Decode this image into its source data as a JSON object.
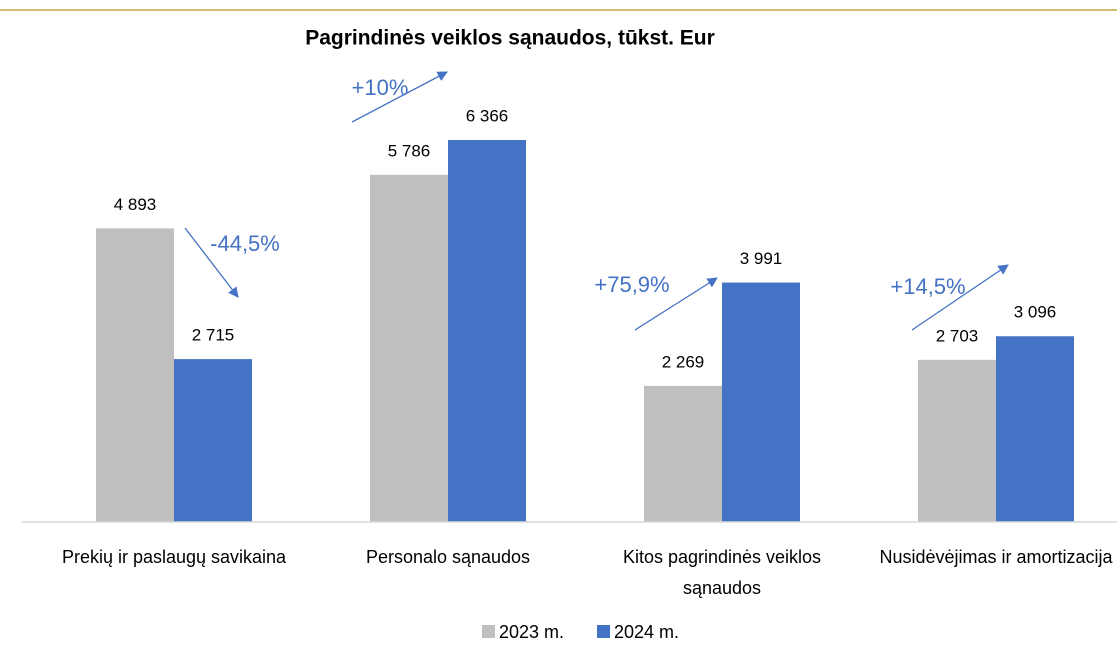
{
  "chart_data": {
    "type": "bar",
    "title": "Pagrindinės veiklos sąnaudos, tūkst. Eur",
    "categories": [
      "Prekių ir paslaugų savikaina",
      "Personalo sąnaudos",
      "Kitos pagrindinės veiklos sąnaudos",
      "Nusidėvėjimas ir amortizacija"
    ],
    "series": [
      {
        "name": "2023 m.",
        "color": "#bfbfbf",
        "values": [
          4893,
          5786,
          2269,
          2703
        ],
        "value_labels": [
          "4 893",
          "5 786",
          "2 269",
          "2 703"
        ]
      },
      {
        "name": "2024 m.",
        "color": "#4472c4",
        "values": [
          2715,
          6366,
          3991,
          3096
        ],
        "value_labels": [
          "2 715",
          "6 366",
          "3 991",
          "3 096"
        ]
      }
    ],
    "annotations": [
      "-44,5%",
      "+10%",
      "+75,9%",
      "+14,5%"
    ],
    "ylim": [
      0,
      7000
    ],
    "legend": "bottom"
  }
}
